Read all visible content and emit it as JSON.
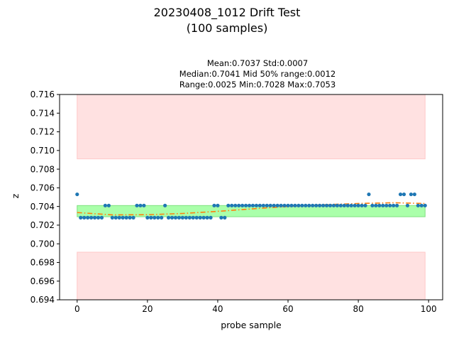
{
  "figure": {
    "title_line1": "20230408_1012 Drift Test",
    "title_line2": "(100 samples)",
    "stats_line1": "Mean:0.7037  Std:0.0007",
    "stats_line2": "Median:0.7041  Mid 50% range:0.0012",
    "stats_line3": "Range:0.0025  Min:0.7028  Max:0.7053"
  },
  "colors": {
    "points": "#1f77b4",
    "trend": "#ff7f0e",
    "band_ok": "#aaffaa",
    "band_limit": "#ffe1e1"
  },
  "chart_data": {
    "type": "scatter",
    "xlabel": "probe sample",
    "ylabel": "z",
    "xlim": [
      -5,
      104
    ],
    "ylim": [
      0.694,
      0.716
    ],
    "x_ticks": [
      0,
      20,
      40,
      60,
      80,
      100
    ],
    "y_ticks": [
      0.694,
      0.696,
      0.698,
      0.7,
      0.702,
      0.704,
      0.706,
      0.708,
      0.71,
      0.712,
      0.714,
      0.716
    ],
    "grid": false,
    "bands": [
      {
        "name": "upper-limit",
        "x_range": [
          0,
          99
        ],
        "y_range": [
          0.7091,
          0.716
        ]
      },
      {
        "name": "lower-limit",
        "x_range": [
          0,
          99
        ],
        "y_range": [
          0.694,
          0.6991
        ]
      },
      {
        "name": "mid-50",
        "x_range": [
          0,
          99
        ],
        "y_range": [
          0.7029,
          0.7041
        ]
      }
    ],
    "series": [
      {
        "kind": "points",
        "x": [
          0,
          1,
          2,
          3,
          4,
          5,
          6,
          7,
          8,
          9,
          10,
          11,
          12,
          13,
          14,
          15,
          16,
          17,
          18,
          19,
          20,
          21,
          22,
          23,
          24,
          25,
          26,
          27,
          28,
          29,
          30,
          31,
          32,
          33,
          34,
          35,
          36,
          37,
          38,
          39,
          40,
          41,
          42,
          43,
          44,
          45,
          46,
          47,
          48,
          49,
          50,
          51,
          52,
          53,
          54,
          55,
          56,
          57,
          58,
          59,
          60,
          61,
          62,
          63,
          64,
          65,
          66,
          67,
          68,
          69,
          70,
          71,
          72,
          73,
          74,
          75,
          76,
          77,
          78,
          79,
          80,
          81,
          82,
          83,
          84,
          85,
          86,
          87,
          88,
          89,
          90,
          91,
          92,
          93,
          94,
          95,
          96,
          97,
          98,
          99
        ],
        "y": [
          0.7053,
          0.7028,
          0.7028,
          0.7028,
          0.7028,
          0.7028,
          0.7028,
          0.7028,
          0.7041,
          0.7041,
          0.7028,
          0.7028,
          0.7028,
          0.7028,
          0.7028,
          0.7028,
          0.7028,
          0.7041,
          0.7041,
          0.7041,
          0.7028,
          0.7028,
          0.7028,
          0.7028,
          0.7028,
          0.7041,
          0.7028,
          0.7028,
          0.7028,
          0.7028,
          0.7028,
          0.7028,
          0.7028,
          0.7028,
          0.7028,
          0.7028,
          0.7028,
          0.7028,
          0.7028,
          0.7041,
          0.7041,
          0.7028,
          0.7028,
          0.7041,
          0.7041,
          0.7041,
          0.7041,
          0.7041,
          0.7041,
          0.7041,
          0.7041,
          0.7041,
          0.7041,
          0.7041,
          0.7041,
          0.7041,
          0.7041,
          0.7041,
          0.7041,
          0.7041,
          0.7041,
          0.7041,
          0.7041,
          0.7041,
          0.7041,
          0.7041,
          0.7041,
          0.7041,
          0.7041,
          0.7041,
          0.7041,
          0.7041,
          0.7041,
          0.7041,
          0.7041,
          0.7041,
          0.7041,
          0.7041,
          0.7041,
          0.7041,
          0.7041,
          0.7041,
          0.7041,
          0.7053,
          0.7041,
          0.7041,
          0.7041,
          0.7041,
          0.7041,
          0.7041,
          0.7041,
          0.7041,
          0.7053,
          0.7053,
          0.7041,
          0.7053,
          0.7053,
          0.7041,
          0.7041,
          0.7041
        ]
      },
      {
        "kind": "trend",
        "x": [
          0,
          10,
          20,
          30,
          40,
          50,
          60,
          70,
          80,
          90,
          99
        ],
        "y": [
          0.70335,
          0.7031,
          0.70312,
          0.70325,
          0.70348,
          0.70375,
          0.704,
          0.70418,
          0.70432,
          0.7044,
          0.70432
        ]
      }
    ]
  }
}
